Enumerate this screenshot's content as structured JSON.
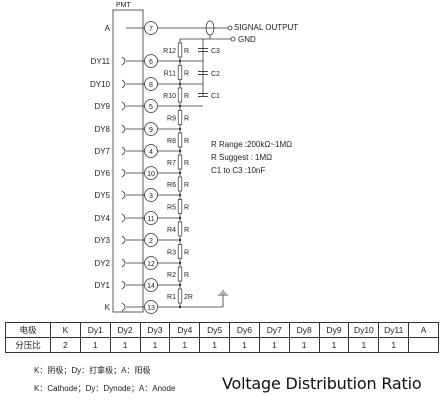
{
  "diagram": {
    "pmt_label": "PMT",
    "signal_output": "SIGNAL  OUTPUT",
    "gnd": "GND",
    "left_pins": [
      {
        "label": "A",
        "pin": "7"
      },
      {
        "label": "DY11",
        "pin": "6"
      },
      {
        "label": "DY10",
        "pin": "8"
      },
      {
        "label": "DY9",
        "pin": "5"
      },
      {
        "label": "DY8",
        "pin": "9"
      },
      {
        "label": "DY7",
        "pin": "4"
      },
      {
        "label": "DY6",
        "pin": "10"
      },
      {
        "label": "DY5",
        "pin": "3"
      },
      {
        "label": "DY4",
        "pin": "11"
      },
      {
        "label": "DY3",
        "pin": "2"
      },
      {
        "label": "DY2",
        "pin": "12"
      },
      {
        "label": "DY1",
        "pin": "14"
      },
      {
        "label": "K",
        "pin": "13"
      }
    ],
    "resistors": [
      "R12",
      "R11",
      "R10",
      "R9",
      "R8",
      "R7",
      "R6",
      "R5",
      "R4",
      "R3",
      "R2",
      "R1"
    ],
    "resistor_r_marks": [
      "R",
      "R",
      "R",
      "R",
      "R",
      "R",
      "R",
      "R",
      "R",
      "R",
      "R",
      "2R"
    ],
    "capacitors": [
      "C3",
      "C2",
      "C1"
    ],
    "notes": [
      "R Range :200kΩ~1MΩ",
      "R Suggest : 1MΩ",
      "C1  to  C3 :10nF"
    ]
  },
  "ratio_table": {
    "header_label": "电极",
    "electrodes": [
      "K",
      "Dy1",
      "Dy2",
      "Dy3",
      "Dy4",
      "Dy5",
      "Dy6",
      "Dy7",
      "Dy8",
      "Dy9",
      "Dy10",
      "Dy11",
      "A"
    ],
    "ratio_label": "分压比",
    "ratios": [
      "2",
      "1",
      "1",
      "1",
      "1",
      "1",
      "1",
      "1",
      "1",
      "1",
      "1",
      "1"
    ]
  },
  "legend": {
    "chinese": "K：阴极；Dy：打拿极；A：阳极",
    "english": "K：Cathode；Dy：Dynode；A：Anode"
  },
  "caption": "Voltage Distribution Ratio"
}
